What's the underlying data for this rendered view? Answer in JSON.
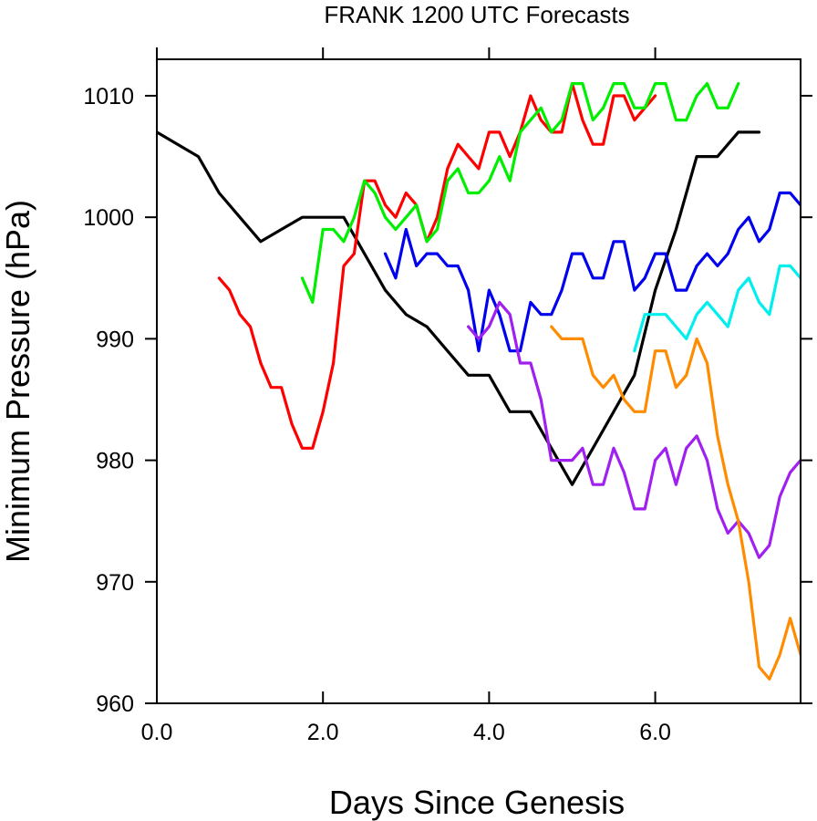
{
  "chart_data": {
    "type": "line",
    "title": "FRANK 1200 UTC Forecasts",
    "xlabel": "Days Since Genesis",
    "ylabel": "Minimum Pressure (hPa)",
    "xlim": [
      0,
      7.75
    ],
    "ylim": [
      960,
      1013
    ],
    "xticks": [
      0,
      2,
      4,
      6
    ],
    "xtick_labels": [
      "0.0",
      "2.0",
      "4.0",
      "6.0"
    ],
    "yticks": [
      960,
      970,
      980,
      990,
      1000,
      1010
    ],
    "ytick_labels": [
      "960",
      "970",
      "980",
      "990",
      "1000",
      "1010"
    ],
    "grid": false,
    "legend": "none",
    "series": [
      {
        "color": "#000000",
        "x": [
          0,
          0.5,
          0.75,
          1.0,
          1.25,
          1.5,
          1.75,
          2.0,
          2.25,
          2.5,
          2.75,
          3.0,
          3.25,
          3.5,
          3.75,
          4.0,
          4.25,
          4.5,
          4.75,
          5.0,
          5.25,
          5.5,
          5.75,
          6.0,
          6.25,
          6.5,
          6.75,
          7.0,
          7.25
        ],
        "y": [
          1007,
          1005,
          1002,
          1000,
          998,
          999,
          1000,
          1000,
          1000,
          997,
          994,
          992,
          991,
          989,
          987,
          987,
          984,
          984,
          981,
          978,
          981,
          984,
          987,
          994,
          999,
          1005,
          1005,
          1007,
          1007
        ]
      },
      {
        "color": "#ff0000",
        "x": [
          0.75,
          0.875,
          1.0,
          1.125,
          1.25,
          1.375,
          1.5,
          1.625,
          1.75,
          1.875,
          2.0,
          2.125,
          2.25,
          2.375,
          2.5,
          2.625,
          2.75,
          2.875,
          3.0,
          3.125,
          3.25,
          3.375,
          3.5,
          3.625,
          3.75,
          3.875,
          4.0,
          4.125,
          4.25,
          4.375,
          4.5,
          4.625,
          4.75,
          4.875,
          5.0,
          5.125,
          5.25,
          5.375,
          5.5,
          5.625,
          5.75,
          5.875,
          6.0
        ],
        "y": [
          995,
          994,
          992,
          991,
          988,
          986,
          986,
          983,
          981,
          981,
          984,
          988,
          996,
          997,
          1003,
          1003,
          1001,
          1000,
          1002,
          1001,
          998,
          1000,
          1004,
          1006,
          1005,
          1004,
          1007,
          1007,
          1005,
          1007,
          1010,
          1008,
          1007,
          1007,
          1011,
          1008,
          1006,
          1006,
          1010,
          1010,
          1008,
          1009,
          1010
        ]
      },
      {
        "color": "#00ee00",
        "x": [
          1.75,
          1.875,
          2.0,
          2.125,
          2.25,
          2.375,
          2.5,
          2.625,
          2.75,
          2.875,
          3.0,
          3.125,
          3.25,
          3.375,
          3.5,
          3.625,
          3.75,
          3.875,
          4.0,
          4.125,
          4.25,
          4.375,
          4.5,
          4.625,
          4.75,
          4.875,
          5.0,
          5.125,
          5.25,
          5.375,
          5.5,
          5.625,
          5.75,
          5.875,
          6.0,
          6.125,
          6.25,
          6.375,
          6.5,
          6.625,
          6.75,
          6.875,
          7.0
        ],
        "y": [
          995,
          993,
          999,
          999,
          998,
          1000,
          1003,
          1002,
          1000,
          999,
          1000,
          1001,
          998,
          999,
          1003,
          1004,
          1002,
          1002,
          1003,
          1005,
          1003,
          1007,
          1008,
          1009,
          1007,
          1008,
          1011,
          1011,
          1008,
          1009,
          1011,
          1011,
          1009,
          1009,
          1011,
          1011,
          1008,
          1008,
          1010,
          1011,
          1009,
          1009,
          1011
        ]
      },
      {
        "color": "#0000ee",
        "x": [
          2.75,
          2.875,
          3.0,
          3.125,
          3.25,
          3.375,
          3.5,
          3.625,
          3.75,
          3.875,
          4.0,
          4.125,
          4.25,
          4.375,
          4.5,
          4.625,
          4.75,
          4.875,
          5.0,
          5.125,
          5.25,
          5.375,
          5.5,
          5.625,
          5.75,
          5.875,
          6.0,
          6.125,
          6.25,
          6.375,
          6.5,
          6.625,
          6.75,
          6.875,
          7.0,
          7.125,
          7.25,
          7.375,
          7.5,
          7.625,
          7.75
        ],
        "y": [
          997,
          995,
          999,
          996,
          997,
          997,
          996,
          996,
          994,
          989,
          994,
          992,
          989,
          989,
          993,
          992,
          992,
          994,
          997,
          997,
          995,
          995,
          998,
          998,
          994,
          995,
          997,
          997,
          994,
          994,
          996,
          997,
          996,
          997,
          999,
          1000,
          998,
          999,
          1002,
          1002,
          1001
        ]
      },
      {
        "color": "#00eeee",
        "x": [
          5.75,
          5.875,
          6.0,
          6.125,
          6.25,
          6.375,
          6.5,
          6.625,
          6.75,
          6.875,
          7.0,
          7.125,
          7.25,
          7.375,
          7.5,
          7.625,
          7.75
        ],
        "y": [
          989,
          992,
          992,
          992,
          991,
          990,
          992,
          993,
          992,
          991,
          994,
          995,
          993,
          992,
          996,
          996,
          995
        ]
      },
      {
        "color": "#a020f0",
        "x": [
          3.75,
          3.875,
          4.0,
          4.125,
          4.25,
          4.375,
          4.5,
          4.625,
          4.75,
          4.875,
          5.0,
          5.125,
          5.25,
          5.375,
          5.5,
          5.625,
          5.75,
          5.875,
          6.0,
          6.125,
          6.25,
          6.375,
          6.5,
          6.625,
          6.75,
          6.875,
          7.0,
          7.125,
          7.25,
          7.375,
          7.5,
          7.625,
          7.75
        ],
        "y": [
          991,
          990,
          991,
          993,
          992,
          988,
          988,
          985,
          980,
          980,
          980,
          981,
          978,
          978,
          981,
          979,
          976,
          976,
          980,
          981,
          978,
          981,
          982,
          980,
          976,
          974,
          975,
          974,
          972,
          973,
          977,
          979,
          980
        ]
      },
      {
        "color": "#ff8c00",
        "x": [
          4.75,
          4.875,
          5.0,
          5.125,
          5.25,
          5.375,
          5.5,
          5.625,
          5.75,
          5.875,
          6.0,
          6.125,
          6.25,
          6.375,
          6.5,
          6.625,
          6.75,
          6.875,
          7.0,
          7.125,
          7.25,
          7.375,
          7.5,
          7.625,
          7.75
        ],
        "y": [
          991,
          990,
          990,
          990,
          987,
          986,
          987,
          985,
          984,
          984,
          989,
          989,
          986,
          987,
          990,
          988,
          982,
          978,
          975,
          970,
          963,
          962,
          964,
          967,
          964
        ]
      }
    ]
  }
}
